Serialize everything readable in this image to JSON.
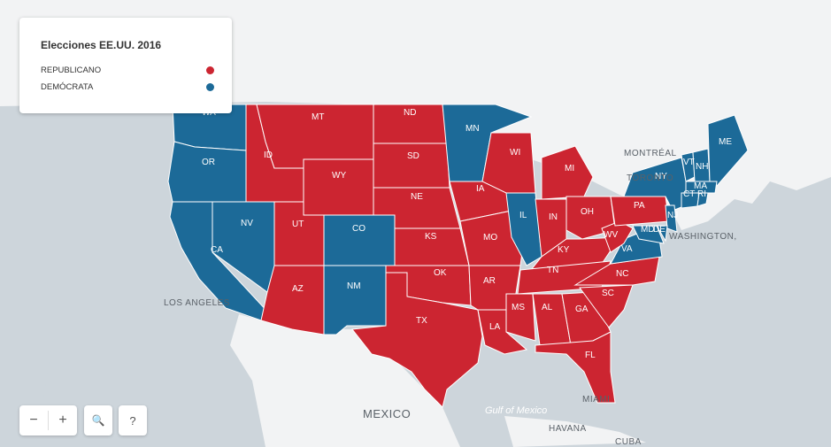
{
  "legend": {
    "title": "Elecciones EE.UU. 2016",
    "items": [
      {
        "label": "REPUBLICANO",
        "color": "#cc2531"
      },
      {
        "label": "DEMÓCRATA",
        "color": "#1c6a98"
      }
    ]
  },
  "colors": {
    "republican": "#cc2531",
    "democrat": "#1c6a98",
    "land": "#f2f3f4",
    "water": "#cdd5db"
  },
  "states": {
    "WA": "dem",
    "OR": "dem",
    "CA": "dem",
    "NV": "dem",
    "ID": "rep",
    "MT": "rep",
    "WY": "rep",
    "UT": "rep",
    "CO": "dem",
    "AZ": "rep",
    "NM": "dem",
    "ND": "rep",
    "SD": "rep",
    "NE": "rep",
    "KS": "rep",
    "OK": "rep",
    "TX": "rep",
    "MN": "dem",
    "IA": "rep",
    "MO": "rep",
    "AR": "rep",
    "LA": "rep",
    "WI": "rep",
    "IL": "dem",
    "MI": "rep",
    "IN": "rep",
    "OH": "rep",
    "KY": "rep",
    "TN": "rep",
    "MS": "rep",
    "AL": "rep",
    "GA": "rep",
    "FL": "rep",
    "SC": "rep",
    "NC": "rep",
    "VA": "dem",
    "WV": "rep",
    "PA": "rep",
    "NY": "dem",
    "VT": "dem",
    "NH": "dem",
    "ME": "dem",
    "MA": "dem",
    "CT": "dem",
    "RI": "dem",
    "NJ": "dem",
    "DE": "dem",
    "MD": "dem"
  },
  "cities": {
    "montreal": "MONTRÉAL",
    "toronto": "TORONTO",
    "washington": "WASHINGTON,",
    "los_angeles": "LOS ANGELES",
    "mexico": "MEXICO",
    "gulf": "Gulf of Mexico",
    "havana": "HAVANA",
    "miami": "MIAMI",
    "cuba": "CUBA"
  },
  "controls": {
    "zoom_out": "−",
    "zoom_in": "+",
    "search": "🔍",
    "help": "?"
  }
}
